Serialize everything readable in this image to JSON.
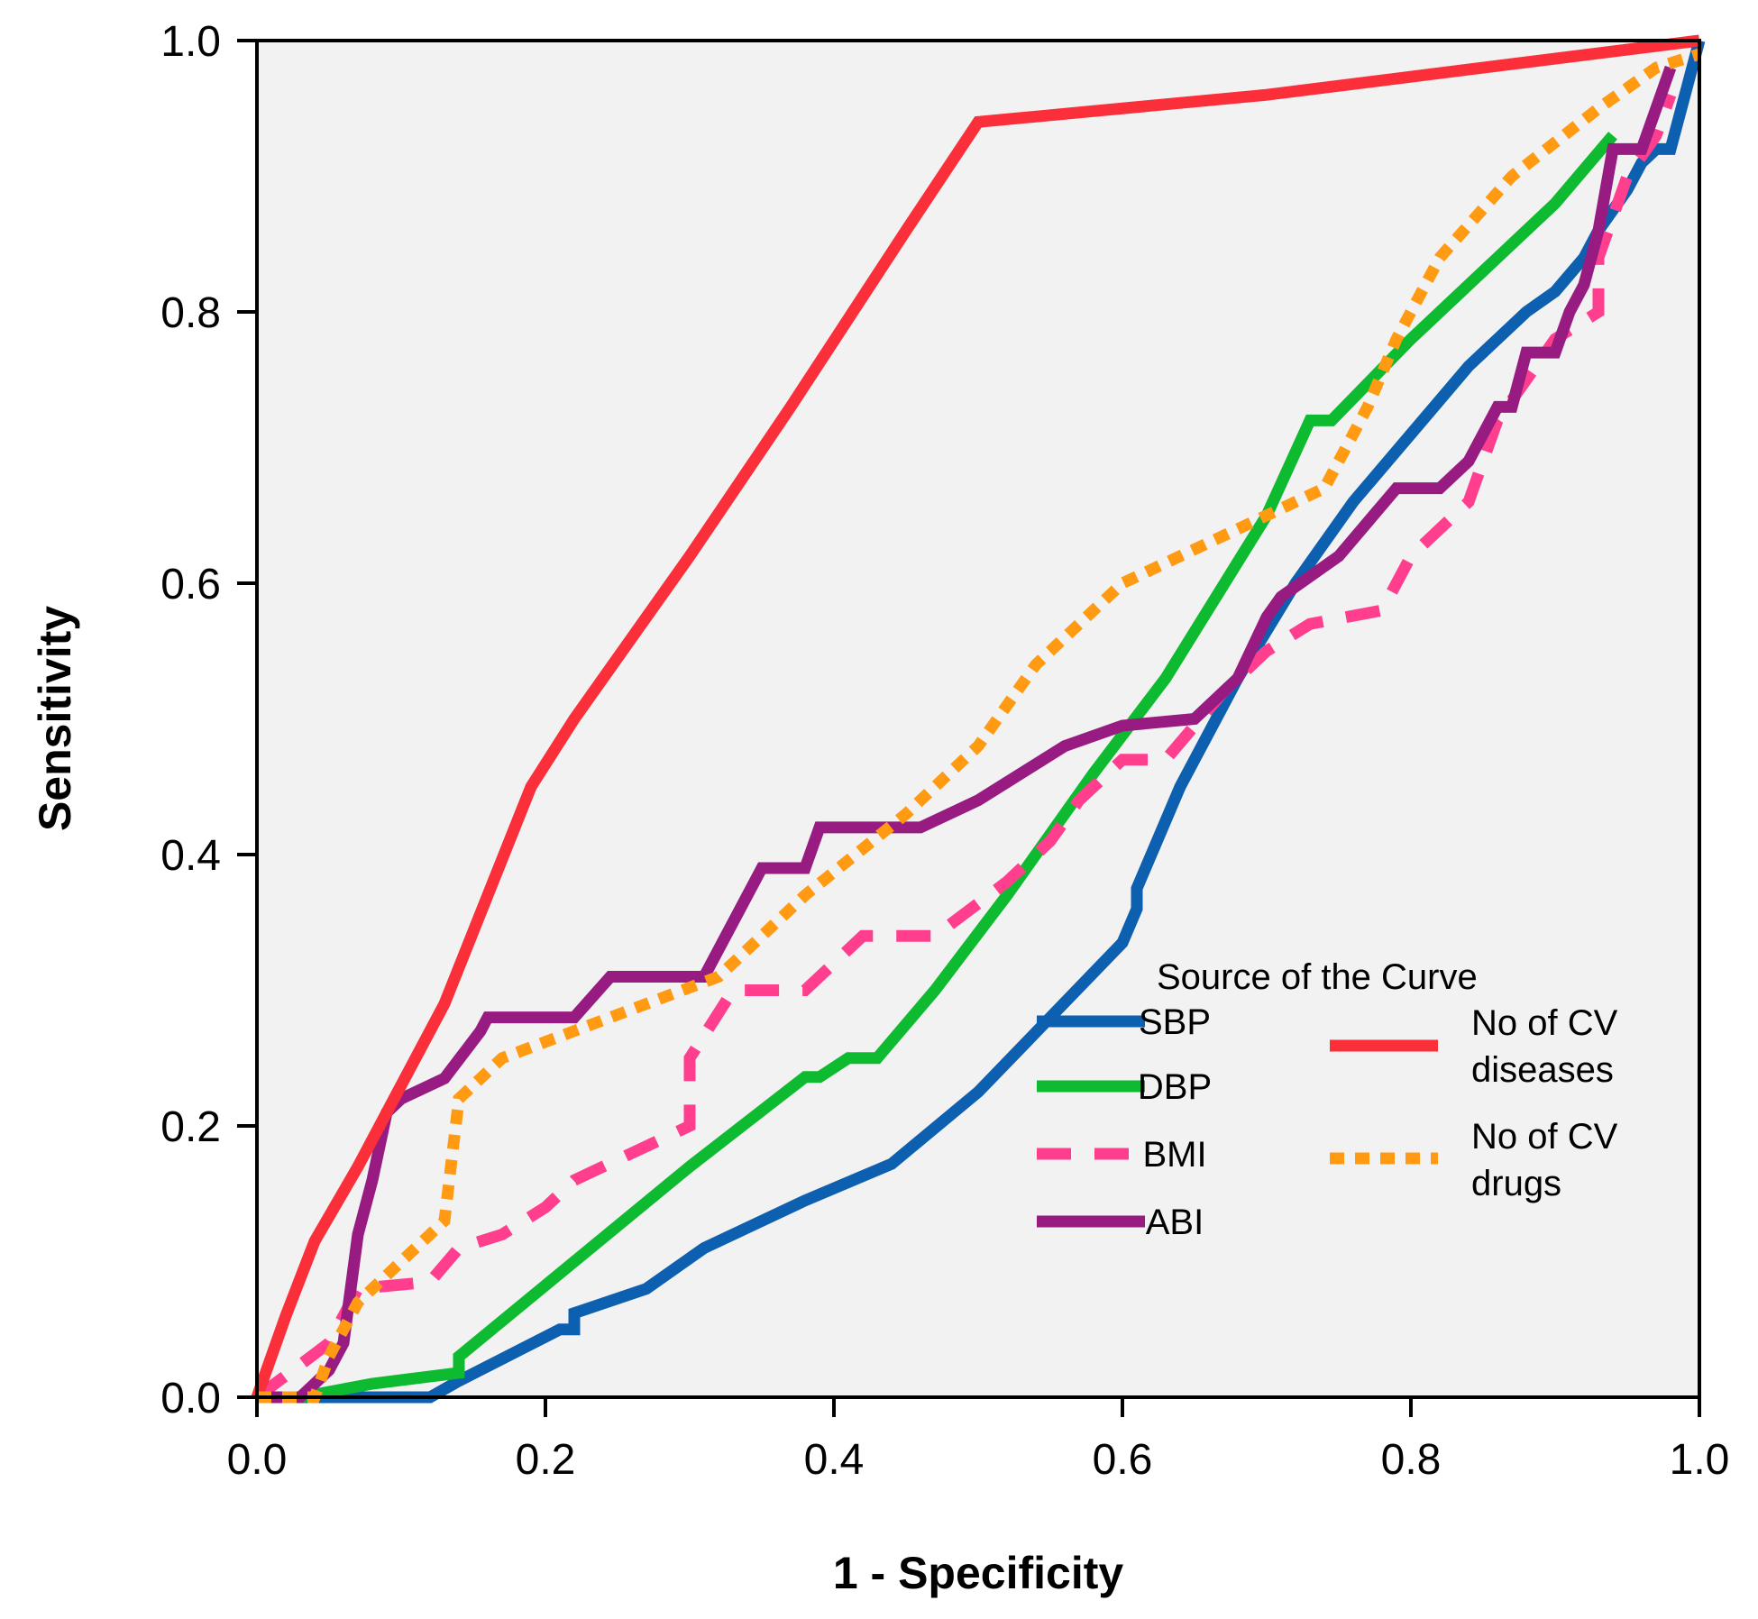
{
  "chart_data": {
    "type": "line",
    "title": "",
    "xlabel": "1 - Specificity",
    "ylabel": "Sensitivity",
    "xlim": [
      0,
      1
    ],
    "ylim": [
      0,
      1
    ],
    "xticks": [
      "0.0",
      "0.2",
      "0.4",
      "0.6",
      "0.8",
      "1.0"
    ],
    "yticks": [
      "0.0",
      "0.2",
      "0.4",
      "0.6",
      "0.8",
      "1.0"
    ],
    "grid": false,
    "legend": {
      "title": "Source of the Curve",
      "placement": "bottom-right"
    },
    "series": [
      {
        "name": "SBP",
        "label_lines": [
          "SBP"
        ],
        "color": "#0d5fb0",
        "dash": "solid",
        "points": [
          [
            0,
            0
          ],
          [
            0.12,
            0
          ],
          [
            0.14,
            0.012
          ],
          [
            0.21,
            0.05
          ],
          [
            0.22,
            0.05
          ],
          [
            0.22,
            0.062
          ],
          [
            0.27,
            0.08
          ],
          [
            0.31,
            0.11
          ],
          [
            0.38,
            0.145
          ],
          [
            0.44,
            0.172
          ],
          [
            0.5,
            0.225
          ],
          [
            0.55,
            0.28
          ],
          [
            0.6,
            0.335
          ],
          [
            0.61,
            0.36
          ],
          [
            0.61,
            0.375
          ],
          [
            0.64,
            0.45
          ],
          [
            0.67,
            0.51
          ],
          [
            0.68,
            0.53
          ],
          [
            0.72,
            0.6
          ],
          [
            0.76,
            0.66
          ],
          [
            0.8,
            0.71
          ],
          [
            0.84,
            0.76
          ],
          [
            0.88,
            0.8
          ],
          [
            0.9,
            0.815
          ],
          [
            0.92,
            0.84
          ],
          [
            0.93,
            0.86
          ],
          [
            0.95,
            0.89
          ],
          [
            0.96,
            0.91
          ],
          [
            0.97,
            0.92
          ],
          [
            0.98,
            0.92
          ],
          [
            1,
            1
          ]
        ]
      },
      {
        "name": "DBP",
        "label_lines": [
          "DBP"
        ],
        "color": "#0eba30",
        "dash": "solid",
        "points": [
          [
            0.03,
            0
          ],
          [
            0.08,
            0.01
          ],
          [
            0.14,
            0.018
          ],
          [
            0.14,
            0.03
          ],
          [
            0.22,
            0.1
          ],
          [
            0.3,
            0.17
          ],
          [
            0.38,
            0.236
          ],
          [
            0.39,
            0.236
          ],
          [
            0.41,
            0.25
          ],
          [
            0.43,
            0.25
          ],
          [
            0.47,
            0.3
          ],
          [
            0.52,
            0.37
          ],
          [
            0.58,
            0.46
          ],
          [
            0.63,
            0.53
          ],
          [
            0.7,
            0.65
          ],
          [
            0.73,
            0.72
          ],
          [
            0.745,
            0.72
          ],
          [
            0.8,
            0.78
          ],
          [
            0.85,
            0.83
          ],
          [
            0.9,
            0.88
          ],
          [
            0.94,
            0.93
          ]
        ]
      },
      {
        "name": "BMI",
        "label_lines": [
          "BMI"
        ],
        "color": "#ff3f8e",
        "dash": "dashed",
        "points": [
          [
            0,
            0
          ],
          [
            0.05,
            0.04
          ],
          [
            0.07,
            0.08
          ],
          [
            0.12,
            0.085
          ],
          [
            0.14,
            0.11
          ],
          [
            0.17,
            0.12
          ],
          [
            0.2,
            0.14
          ],
          [
            0.22,
            0.16
          ],
          [
            0.3,
            0.2
          ],
          [
            0.3,
            0.25
          ],
          [
            0.33,
            0.3
          ],
          [
            0.38,
            0.3
          ],
          [
            0.42,
            0.34
          ],
          [
            0.47,
            0.34
          ],
          [
            0.52,
            0.38
          ],
          [
            0.55,
            0.41
          ],
          [
            0.57,
            0.44
          ],
          [
            0.6,
            0.47
          ],
          [
            0.63,
            0.47
          ],
          [
            0.67,
            0.52
          ],
          [
            0.7,
            0.55
          ],
          [
            0.73,
            0.57
          ],
          [
            0.78,
            0.58
          ],
          [
            0.8,
            0.62
          ],
          [
            0.84,
            0.66
          ],
          [
            0.86,
            0.72
          ],
          [
            0.88,
            0.75
          ],
          [
            0.9,
            0.78
          ],
          [
            0.93,
            0.8
          ],
          [
            0.93,
            0.84
          ],
          [
            0.95,
            0.9
          ],
          [
            0.97,
            0.93
          ],
          [
            0.98,
            0.96
          ]
        ]
      },
      {
        "name": "ABI",
        "label_lines": [
          "ABI"
        ],
        "color": "#981b82",
        "dash": "solid",
        "points": [
          [
            0,
            0
          ],
          [
            0.03,
            0
          ],
          [
            0.05,
            0.02
          ],
          [
            0.06,
            0.04
          ],
          [
            0.07,
            0.12
          ],
          [
            0.08,
            0.16
          ],
          [
            0.09,
            0.21
          ],
          [
            0.1,
            0.22
          ],
          [
            0.13,
            0.235
          ],
          [
            0.155,
            0.27
          ],
          [
            0.16,
            0.28
          ],
          [
            0.22,
            0.28
          ],
          [
            0.245,
            0.31
          ],
          [
            0.31,
            0.31
          ],
          [
            0.35,
            0.39
          ],
          [
            0.38,
            0.39
          ],
          [
            0.39,
            0.42
          ],
          [
            0.46,
            0.42
          ],
          [
            0.5,
            0.44
          ],
          [
            0.56,
            0.48
          ],
          [
            0.6,
            0.495
          ],
          [
            0.65,
            0.5
          ],
          [
            0.68,
            0.53
          ],
          [
            0.7,
            0.575
          ],
          [
            0.71,
            0.59
          ],
          [
            0.75,
            0.62
          ],
          [
            0.79,
            0.67
          ],
          [
            0.82,
            0.67
          ],
          [
            0.84,
            0.69
          ],
          [
            0.86,
            0.73
          ],
          [
            0.87,
            0.73
          ],
          [
            0.88,
            0.77
          ],
          [
            0.9,
            0.77
          ],
          [
            0.91,
            0.8
          ],
          [
            0.92,
            0.82
          ],
          [
            0.93,
            0.86
          ],
          [
            0.94,
            0.92
          ],
          [
            0.96,
            0.92
          ],
          [
            0.97,
            0.95
          ],
          [
            0.98,
            0.98
          ]
        ]
      },
      {
        "name": "No of CV diseases",
        "label_lines": [
          "No of CV",
          "diseases"
        ],
        "color": "#fa2f3a",
        "dash": "solid",
        "points": [
          [
            0,
            0
          ],
          [
            0.02,
            0.06
          ],
          [
            0.04,
            0.115
          ],
          [
            0.07,
            0.17
          ],
          [
            0.1,
            0.23
          ],
          [
            0.13,
            0.29
          ],
          [
            0.16,
            0.37
          ],
          [
            0.19,
            0.45
          ],
          [
            0.22,
            0.5
          ],
          [
            0.3,
            0.62
          ],
          [
            0.37,
            0.73
          ],
          [
            0.45,
            0.86
          ],
          [
            0.5,
            0.94
          ],
          [
            0.7,
            0.96
          ],
          [
            0.85,
            0.98
          ],
          [
            1,
            1
          ]
        ]
      },
      {
        "name": "No of CV drugs",
        "label_lines": [
          "No of CV",
          "drugs"
        ],
        "color": "#ff9a12",
        "dash": "dotted",
        "points": [
          [
            0,
            0
          ],
          [
            0.04,
            0
          ],
          [
            0.05,
            0.03
          ],
          [
            0.07,
            0.07
          ],
          [
            0.1,
            0.1
          ],
          [
            0.13,
            0.13
          ],
          [
            0.14,
            0.22
          ],
          [
            0.17,
            0.25
          ],
          [
            0.22,
            0.27
          ],
          [
            0.32,
            0.31
          ],
          [
            0.38,
            0.37
          ],
          [
            0.45,
            0.43
          ],
          [
            0.5,
            0.48
          ],
          [
            0.54,
            0.54
          ],
          [
            0.6,
            0.6
          ],
          [
            0.7,
            0.65
          ],
          [
            0.74,
            0.67
          ],
          [
            0.77,
            0.73
          ],
          [
            0.79,
            0.78
          ],
          [
            0.82,
            0.84
          ],
          [
            0.87,
            0.9
          ],
          [
            0.93,
            0.95
          ],
          [
            0.97,
            0.98
          ],
          [
            1,
            0.99
          ]
        ]
      }
    ]
  }
}
